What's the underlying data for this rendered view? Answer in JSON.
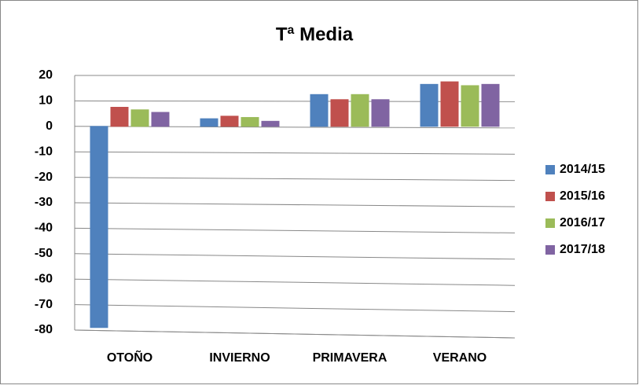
{
  "chart_data": {
    "type": "bar",
    "title": "Tª Media",
    "categories": [
      "OTOÑO",
      "INVIERNO",
      "PRIMAVERA",
      "VERANO"
    ],
    "series": [
      {
        "name": "2014/15",
        "color": "#4f81bd",
        "values": [
          -79,
          3,
          12.5,
          16.5
        ]
      },
      {
        "name": "2015/16",
        "color": "#c0504d",
        "values": [
          7.5,
          4,
          10.5,
          17.5
        ]
      },
      {
        "name": "2016/17",
        "color": "#9bbb59",
        "values": [
          6.5,
          3.5,
          12.5,
          16
        ]
      },
      {
        "name": "2017/18",
        "color": "#8064a2",
        "values": [
          5.5,
          2,
          10.5,
          16.5
        ]
      }
    ],
    "ylim": [
      -80,
      20
    ],
    "yticks": [
      20,
      10,
      0,
      -10,
      -20,
      -30,
      -40,
      -50,
      -60,
      -70,
      -80
    ],
    "grid": true,
    "legend": "right"
  }
}
